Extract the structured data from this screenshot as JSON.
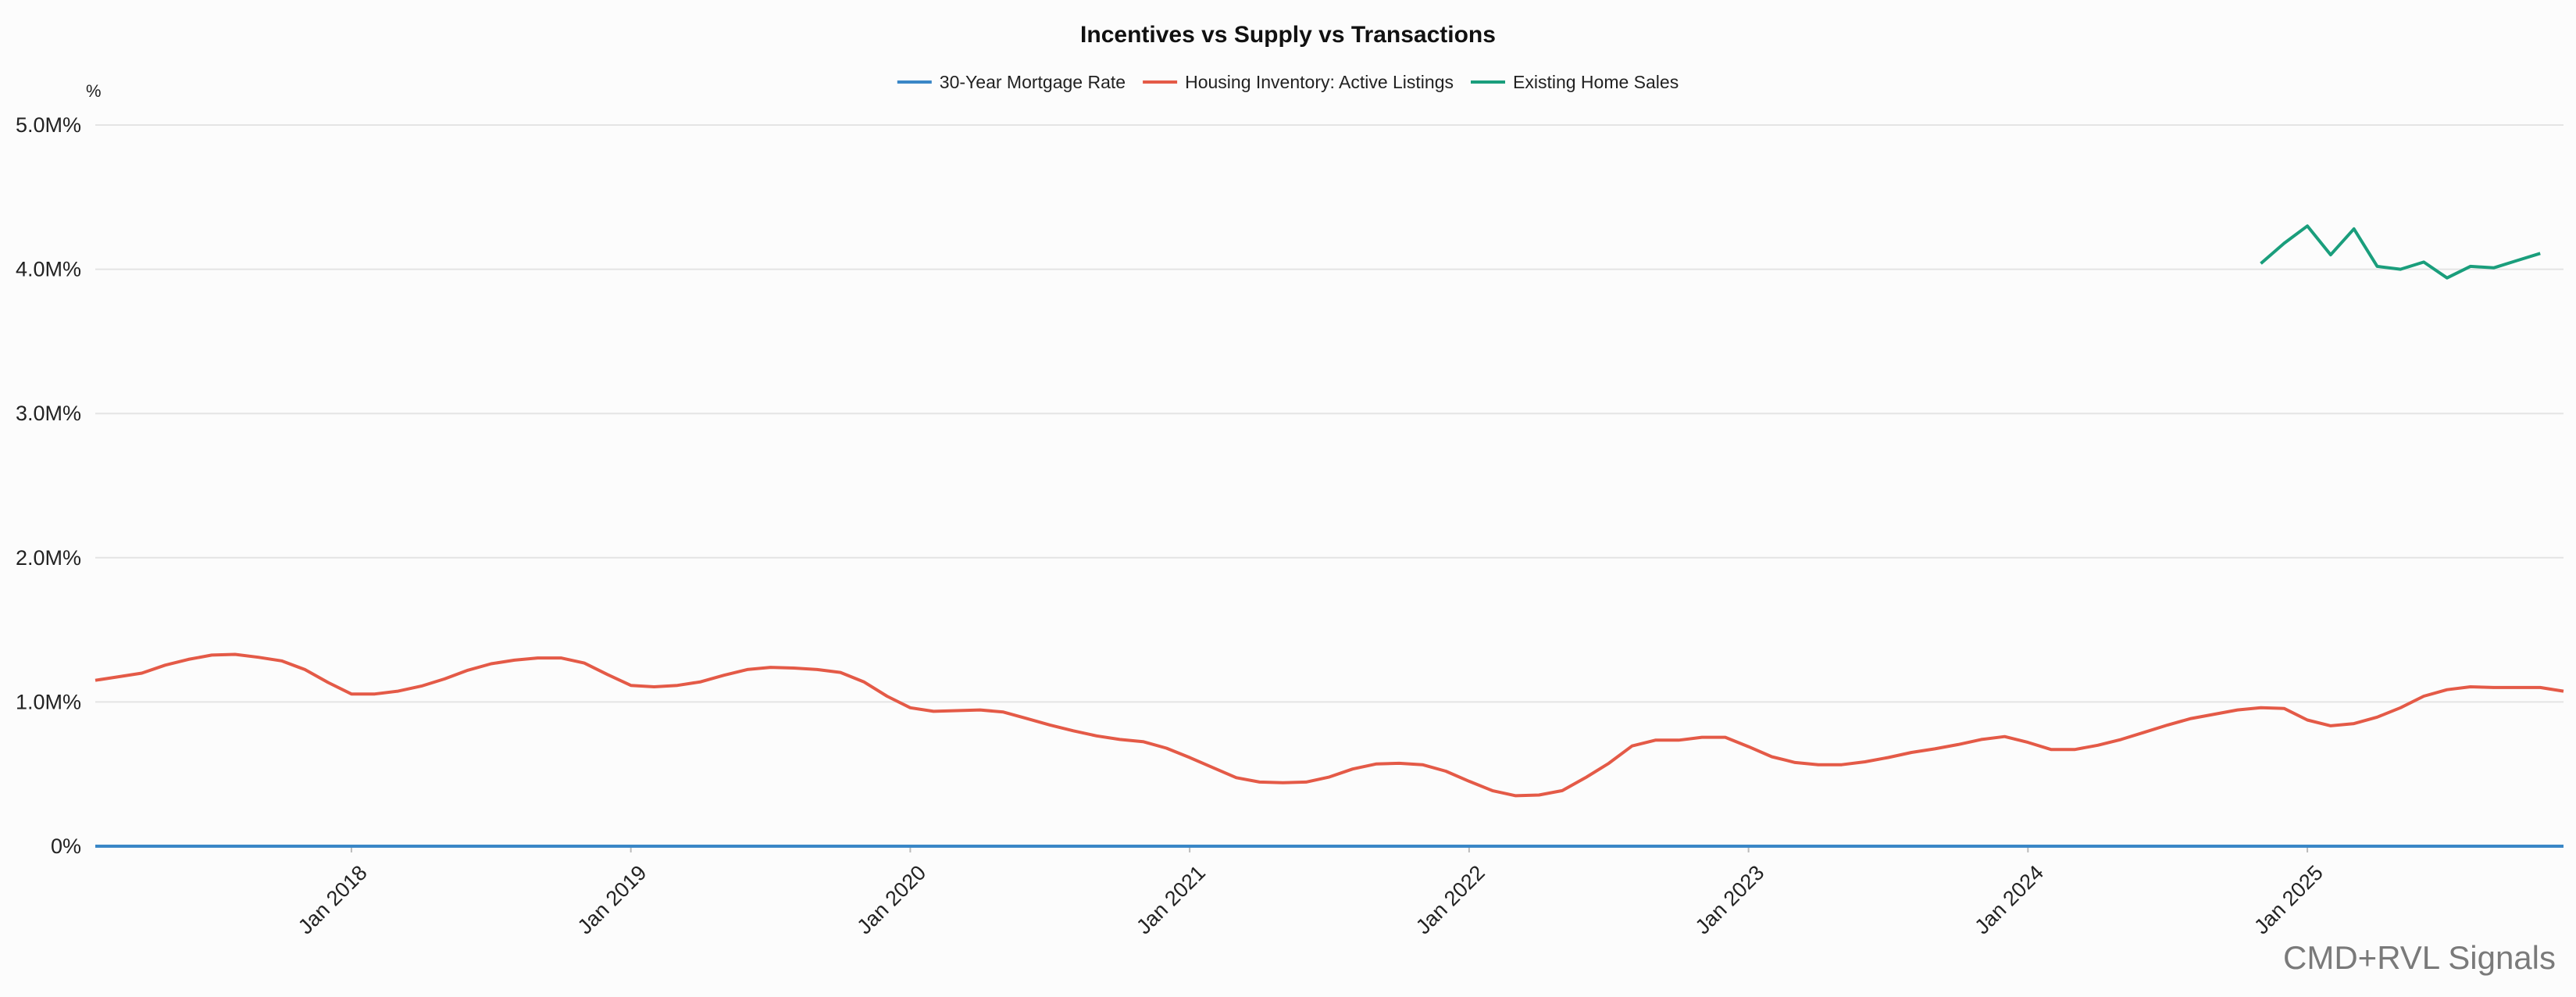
{
  "chart_data": {
    "type": "line",
    "title": "Incentives vs Supply vs Transactions",
    "y_unit": "%",
    "ylim": [
      0,
      5000000
    ],
    "y_ticks": [
      {
        "value": 0,
        "label": "0%"
      },
      {
        "value": 1000000,
        "label": "1.0M%"
      },
      {
        "value": 2000000,
        "label": "2.0M%"
      },
      {
        "value": 3000000,
        "label": "3.0M%"
      },
      {
        "value": 4000000,
        "label": "4.0M%"
      },
      {
        "value": 5000000,
        "label": "5.0M%"
      }
    ],
    "x_range": [
      "2017-02",
      "2025-12"
    ],
    "x_ticks": [
      {
        "value": "2018-01",
        "label": "Jan 2018"
      },
      {
        "value": "2019-01",
        "label": "Jan 2019"
      },
      {
        "value": "2020-01",
        "label": "Jan 2020"
      },
      {
        "value": "2021-01",
        "label": "Jan 2021"
      },
      {
        "value": "2022-01",
        "label": "Jan 2022"
      },
      {
        "value": "2023-01",
        "label": "Jan 2023"
      },
      {
        "value": "2024-01",
        "label": "Jan 2024"
      },
      {
        "value": "2025-01",
        "label": "Jan 2025"
      }
    ],
    "grid": true,
    "legend_position": "top-center",
    "series": [
      {
        "name": "30-Year Mortgage Rate",
        "color": "#3a87c7",
        "points": [
          [
            "2017-02",
            6.2
          ],
          [
            "2025-12",
            6.3
          ]
        ]
      },
      {
        "name": "Housing Inventory: Active Listings",
        "color": "#e45a47",
        "points": [
          [
            "2017-02",
            1150000
          ],
          [
            "2017-03",
            1175000
          ],
          [
            "2017-04",
            1200000
          ],
          [
            "2017-05",
            1255000
          ],
          [
            "2017-06",
            1295000
          ],
          [
            "2017-07",
            1325000
          ],
          [
            "2017-08",
            1330000
          ],
          [
            "2017-09",
            1310000
          ],
          [
            "2017-10",
            1285000
          ],
          [
            "2017-11",
            1225000
          ],
          [
            "2017-12",
            1135000
          ],
          [
            "2018-01",
            1055000
          ],
          [
            "2018-02",
            1055000
          ],
          [
            "2018-03",
            1075000
          ],
          [
            "2018-04",
            1110000
          ],
          [
            "2018-05",
            1160000
          ],
          [
            "2018-06",
            1220000
          ],
          [
            "2018-07",
            1265000
          ],
          [
            "2018-08",
            1290000
          ],
          [
            "2018-09",
            1305000
          ],
          [
            "2018-10",
            1305000
          ],
          [
            "2018-11",
            1270000
          ],
          [
            "2018-12",
            1190000
          ],
          [
            "2019-01",
            1115000
          ],
          [
            "2019-02",
            1105000
          ],
          [
            "2019-03",
            1115000
          ],
          [
            "2019-04",
            1140000
          ],
          [
            "2019-05",
            1185000
          ],
          [
            "2019-06",
            1225000
          ],
          [
            "2019-07",
            1240000
          ],
          [
            "2019-08",
            1235000
          ],
          [
            "2019-09",
            1225000
          ],
          [
            "2019-10",
            1205000
          ],
          [
            "2019-11",
            1140000
          ],
          [
            "2019-12",
            1040000
          ],
          [
            "2020-01",
            960000
          ],
          [
            "2020-02",
            935000
          ],
          [
            "2020-03",
            940000
          ],
          [
            "2020-04",
            945000
          ],
          [
            "2020-05",
            930000
          ],
          [
            "2020-06",
            885000
          ],
          [
            "2020-07",
            840000
          ],
          [
            "2020-08",
            800000
          ],
          [
            "2020-09",
            765000
          ],
          [
            "2020-10",
            740000
          ],
          [
            "2020-11",
            725000
          ],
          [
            "2020-12",
            680000
          ],
          [
            "2021-01",
            615000
          ],
          [
            "2021-02",
            545000
          ],
          [
            "2021-03",
            475000
          ],
          [
            "2021-04",
            445000
          ],
          [
            "2021-05",
            440000
          ],
          [
            "2021-06",
            445000
          ],
          [
            "2021-07",
            480000
          ],
          [
            "2021-08",
            535000
          ],
          [
            "2021-09",
            570000
          ],
          [
            "2021-10",
            575000
          ],
          [
            "2021-11",
            565000
          ],
          [
            "2021-12",
            520000
          ],
          [
            "2022-01",
            450000
          ],
          [
            "2022-02",
            385000
          ],
          [
            "2022-03",
            350000
          ],
          [
            "2022-04",
            355000
          ],
          [
            "2022-05",
            385000
          ],
          [
            "2022-06",
            475000
          ],
          [
            "2022-07",
            575000
          ],
          [
            "2022-08",
            695000
          ],
          [
            "2022-09",
            735000
          ],
          [
            "2022-10",
            735000
          ],
          [
            "2022-11",
            755000
          ],
          [
            "2022-12",
            755000
          ],
          [
            "2023-01",
            690000
          ],
          [
            "2023-02",
            620000
          ],
          [
            "2023-03",
            580000
          ],
          [
            "2023-04",
            565000
          ],
          [
            "2023-05",
            565000
          ],
          [
            "2023-06",
            585000
          ],
          [
            "2023-07",
            615000
          ],
          [
            "2023-08",
            650000
          ],
          [
            "2023-09",
            675000
          ],
          [
            "2023-10",
            705000
          ],
          [
            "2023-11",
            740000
          ],
          [
            "2023-12",
            760000
          ],
          [
            "2024-01",
            720000
          ],
          [
            "2024-02",
            670000
          ],
          [
            "2024-03",
            670000
          ],
          [
            "2024-04",
            700000
          ],
          [
            "2024-05",
            740000
          ],
          [
            "2024-06",
            790000
          ],
          [
            "2024-07",
            840000
          ],
          [
            "2024-08",
            885000
          ],
          [
            "2024-09",
            915000
          ],
          [
            "2024-10",
            945000
          ],
          [
            "2024-11",
            960000
          ],
          [
            "2024-12",
            955000
          ],
          [
            "2025-01",
            875000
          ],
          [
            "2025-02",
            835000
          ],
          [
            "2025-03",
            850000
          ],
          [
            "2025-04",
            895000
          ],
          [
            "2025-05",
            960000
          ],
          [
            "2025-06",
            1040000
          ],
          [
            "2025-07",
            1085000
          ],
          [
            "2025-08",
            1105000
          ],
          [
            "2025-09",
            1100000
          ],
          [
            "2025-10",
            1100000
          ],
          [
            "2025-11",
            1100000
          ],
          [
            "2025-12",
            1075000
          ]
        ]
      },
      {
        "name": "Existing Home Sales",
        "color": "#1a9e7c",
        "points": [
          [
            "2024-11",
            4040000
          ],
          [
            "2024-12",
            4180000
          ],
          [
            "2025-01",
            4300000
          ],
          [
            "2025-02",
            4100000
          ],
          [
            "2025-03",
            4280000
          ],
          [
            "2025-04",
            4020000
          ],
          [
            "2025-05",
            4000000
          ],
          [
            "2025-06",
            4050000
          ],
          [
            "2025-07",
            3940000
          ],
          [
            "2025-08",
            4020000
          ],
          [
            "2025-09",
            4010000
          ],
          [
            "2025-10",
            4060000
          ],
          [
            "2025-11",
            4110000
          ]
        ]
      }
    ]
  },
  "watermark": "CMD+RVL Signals"
}
